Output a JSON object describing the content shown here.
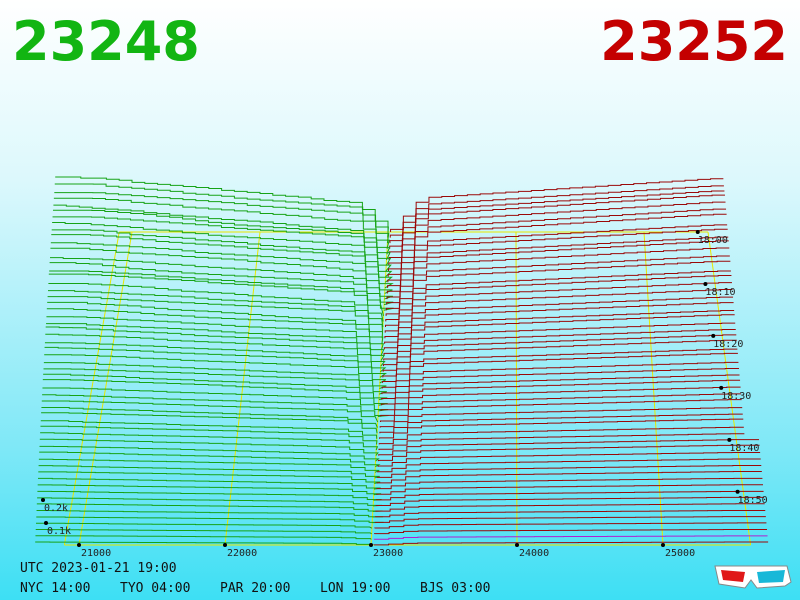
{
  "bid": "23248",
  "ask": "23252",
  "price_labels": [
    "21000",
    "22000",
    "23000",
    "24000",
    "25000"
  ],
  "time_labels": [
    "18:00",
    "18:10",
    "18:20",
    "18:30",
    "18:40",
    "18:50"
  ],
  "depth_labels": [
    "0.2k",
    "0.1k"
  ],
  "footer": {
    "utc": "UTC 2023-01-21 19:00",
    "zones": [
      "NYC 14:00",
      "TYO 04:00",
      "PAR 20:00",
      "LON 19:00",
      "BJS 03:00"
    ]
  }
}
